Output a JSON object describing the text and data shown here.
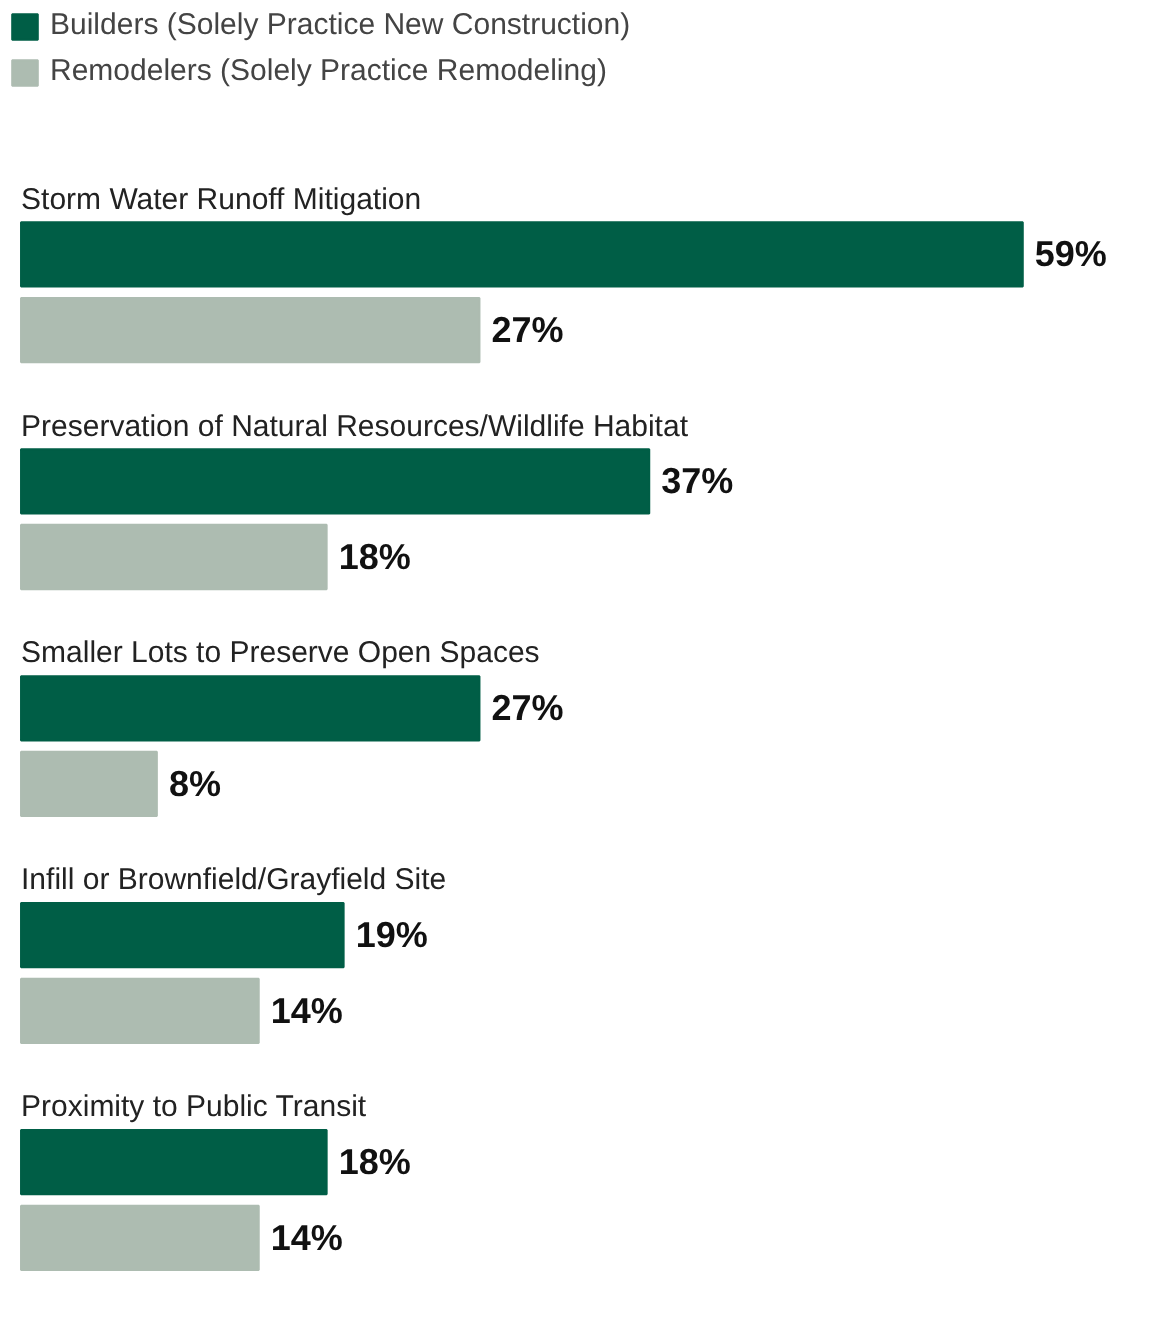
{
  "chart_data": {
    "type": "bar",
    "orientation": "horizontal",
    "categories": [
      "Storm Water Runoff Mitigation",
      "Preservation of Natural Resources/Wildlife Habitat",
      "Smaller Lots to Preserve Open Spaces",
      "Infill or Brownfield/Grayfield Site",
      "Proximity to Public Transit"
    ],
    "series": [
      {
        "name": "Builders (Solely Practice New Construction)",
        "color": "#005e46",
        "values": [
          59,
          37,
          27,
          19,
          18
        ],
        "value_labels": [
          "59%",
          "37%",
          "27%",
          "19%",
          "18%"
        ]
      },
      {
        "name": "Remodelers (Solely Practice Remodeling)",
        "color": "#adbcb1",
        "values": [
          27,
          18,
          8,
          14,
          14
        ],
        "value_labels": [
          "27%",
          "18%",
          "8%",
          "14%",
          "14%"
        ]
      }
    ],
    "legend": "top left",
    "grid": false
  }
}
